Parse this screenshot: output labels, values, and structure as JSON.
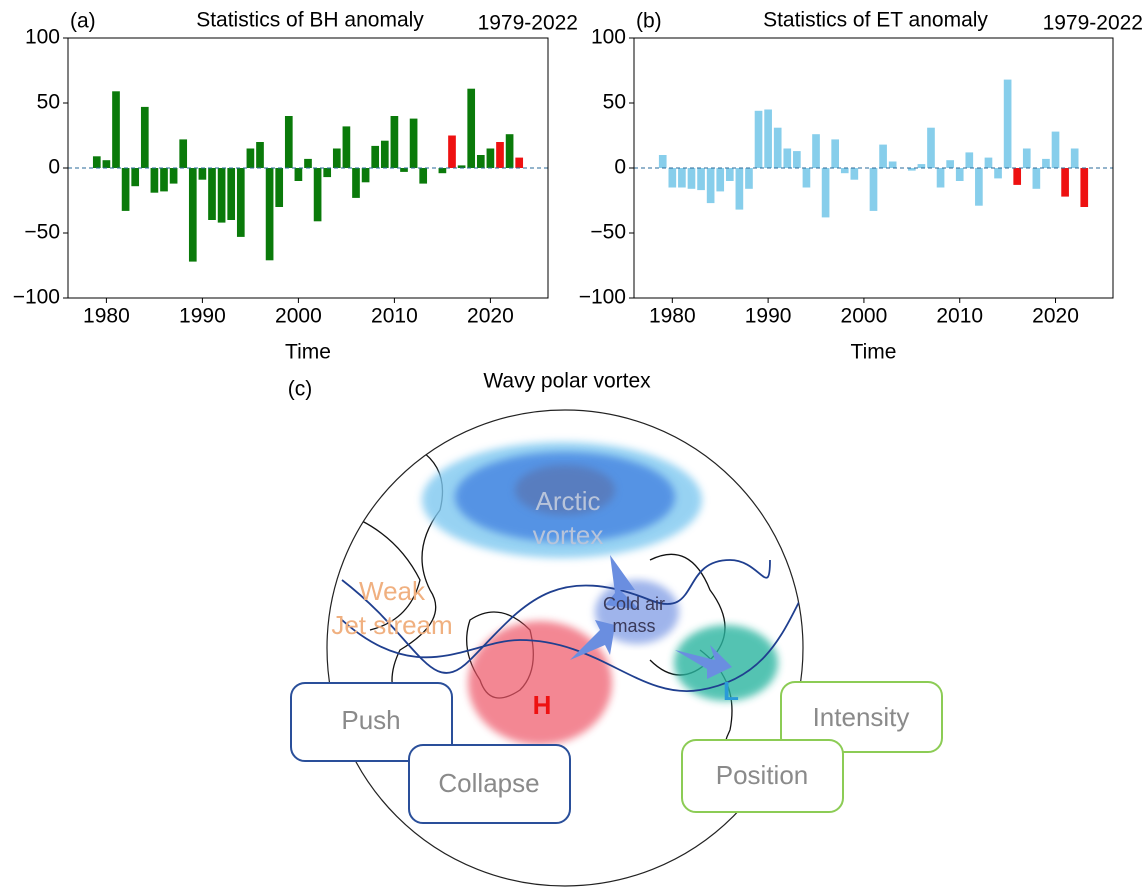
{
  "chart_data": [
    {
      "type": "bar",
      "panel": "(a)",
      "title": "Statistics of BH anomaly",
      "period": "1979-2022",
      "xlabel": "Time",
      "x": [
        1979,
        1980,
        1981,
        1982,
        1983,
        1984,
        1985,
        1986,
        1987,
        1988,
        1989,
        1990,
        1991,
        1992,
        1993,
        1994,
        1995,
        1996,
        1997,
        1998,
        1999,
        2000,
        2001,
        2002,
        2003,
        2004,
        2005,
        2006,
        2007,
        2008,
        2009,
        2010,
        2011,
        2012,
        2013,
        2014,
        2015,
        2016,
        2017,
        2018,
        2019,
        2020,
        2021,
        2022,
        2023
      ],
      "values": [
        9,
        6,
        59,
        -33,
        -14,
        47,
        -19,
        -18,
        -12,
        22,
        -72,
        -9,
        -40,
        -42,
        -40,
        -53,
        15,
        20,
        -71,
        -30,
        40,
        -10,
        7,
        -41,
        -7,
        15,
        32,
        -23,
        -11,
        17,
        21,
        40,
        -3,
        38,
        -12,
        0,
        -4,
        25,
        2,
        61,
        10,
        15,
        20,
        26,
        8
      ],
      "color": "#0a7a0a",
      "highlight_color": "#ee1111",
      "highlight": [
        2016,
        2021,
        2023
      ],
      "xlim": [
        1976,
        2026
      ],
      "xticks": [
        1980,
        1990,
        2000,
        2010,
        2020
      ],
      "ylim": [
        -100,
        100
      ],
      "yticks": [
        {
          "value": -100,
          "label": "−100"
        },
        {
          "value": -50,
          "label": "−50"
        },
        0,
        50,
        100
      ],
      "zero_line_color": "#2a6a9a"
    },
    {
      "type": "bar",
      "panel": "(b)",
      "title": "Statistics of ET anomaly",
      "period": "1979-2022",
      "xlabel": "Time",
      "x": [
        1979,
        1980,
        1981,
        1982,
        1983,
        1984,
        1985,
        1986,
        1987,
        1988,
        1989,
        1990,
        1991,
        1992,
        1993,
        1994,
        1995,
        1996,
        1997,
        1998,
        1999,
        2000,
        2001,
        2002,
        2003,
        2004,
        2005,
        2006,
        2007,
        2008,
        2009,
        2010,
        2011,
        2012,
        2013,
        2014,
        2015,
        2016,
        2017,
        2018,
        2019,
        2020,
        2021,
        2022,
        2023
      ],
      "values": [
        10,
        -15,
        -15,
        -16,
        -17,
        -27,
        -18,
        -10,
        -32,
        -16,
        44,
        45,
        31,
        15,
        13,
        -15,
        26,
        -38,
        22,
        -4,
        -9,
        0,
        -33,
        18,
        5,
        0,
        -2,
        3,
        31,
        -15,
        6,
        -10,
        12,
        -29,
        8,
        -8,
        68,
        -13,
        15,
        -16,
        7,
        28,
        -22,
        15,
        -30
      ],
      "color": "#87ceeb",
      "highlight_color": "#ee1111",
      "highlight": [
        2016,
        2021,
        2023
      ],
      "xlim": [
        1976,
        2026
      ],
      "xticks": [
        1980,
        1990,
        2000,
        2010,
        2020
      ],
      "ylim": [
        -100,
        100
      ],
      "yticks": [
        {
          "value": -100,
          "label": "−100"
        },
        {
          "value": -50,
          "label": "−50"
        },
        0,
        50,
        100
      ],
      "zero_line_color": "#2a6a9a"
    }
  ],
  "diagram": {
    "panel": "(c)",
    "title": "Wavy polar vortex",
    "arctic_vortex": [
      "Arctic",
      "vortex"
    ],
    "jet_stream": [
      "Weak",
      "Jet stream"
    ],
    "cold_air": [
      "Cold air",
      "mass"
    ],
    "high": "H",
    "low": "L",
    "boxes": [
      "Push",
      "Collapse",
      "Intensity",
      "Position"
    ]
  }
}
